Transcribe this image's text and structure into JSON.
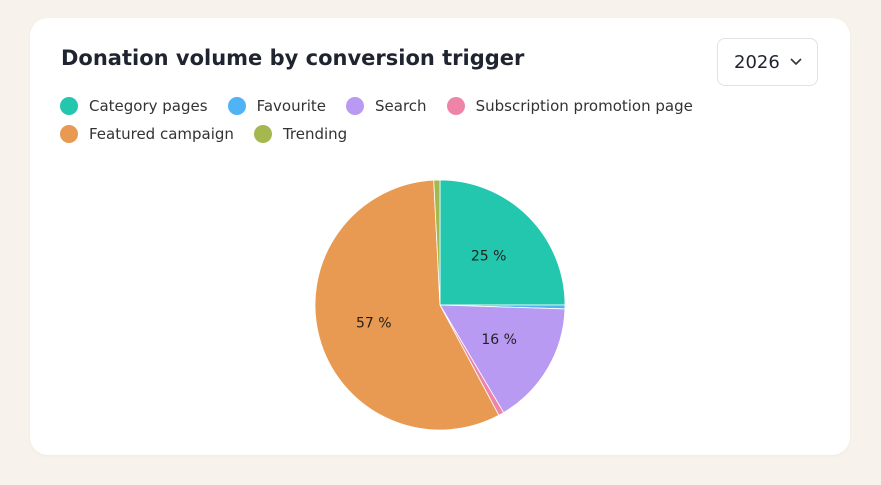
{
  "year": "2026",
  "chart_data": {
    "type": "pie",
    "title": "Donation volume by conversion trigger",
    "categories": [
      "Category pages",
      "Favourite",
      "Search",
      "Subscription promotion page",
      "Featured campaign",
      "Trending"
    ],
    "values": [
      25,
      0.5,
      16,
      0.7,
      57,
      0.8
    ],
    "value_labels": [
      "25 %",
      null,
      "16 %",
      null,
      "57 %",
      null
    ],
    "colors": [
      "#22c7ae",
      "#4fb3f5",
      "#b99af2",
      "#ee85a8",
      "#e89a52",
      "#a3b84f"
    ]
  }
}
